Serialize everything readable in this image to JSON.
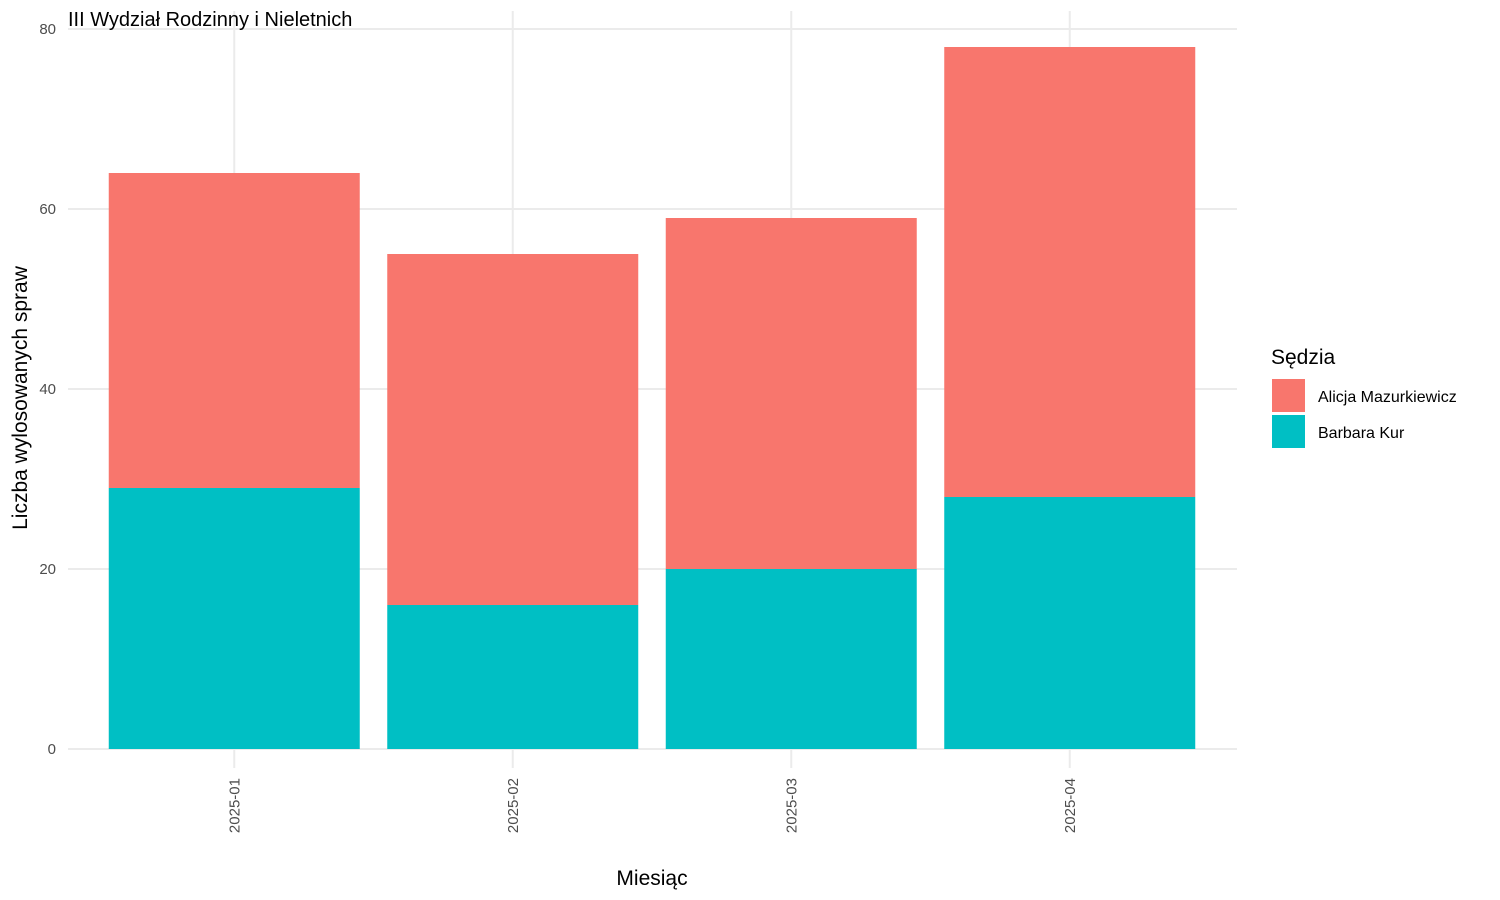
{
  "chart_data": {
    "type": "bar",
    "stacked": true,
    "title": "III Wydział Rodzinny i Nieletnich",
    "xlabel": "Miesiąc",
    "ylabel": "Liczba wylosowanych spraw",
    "categories": [
      "2025-01",
      "2025-02",
      "2025-03",
      "2025-04"
    ],
    "ylim": [
      0,
      80
    ],
    "yticks": [
      0,
      20,
      40,
      60,
      80
    ],
    "grid": true,
    "legend": {
      "title": "Sędzia",
      "placement": "right"
    },
    "series": [
      {
        "name": "Barbara Kur",
        "color": "#00BFC4",
        "values": [
          29,
          16,
          20,
          28
        ]
      },
      {
        "name": "Alicja Mazurkiewicz",
        "color": "#F8766D",
        "values": [
          35,
          39,
          39,
          50
        ]
      }
    ],
    "legend_order": [
      "Alicja Mazurkiewicz",
      "Barbara Kur"
    ]
  }
}
